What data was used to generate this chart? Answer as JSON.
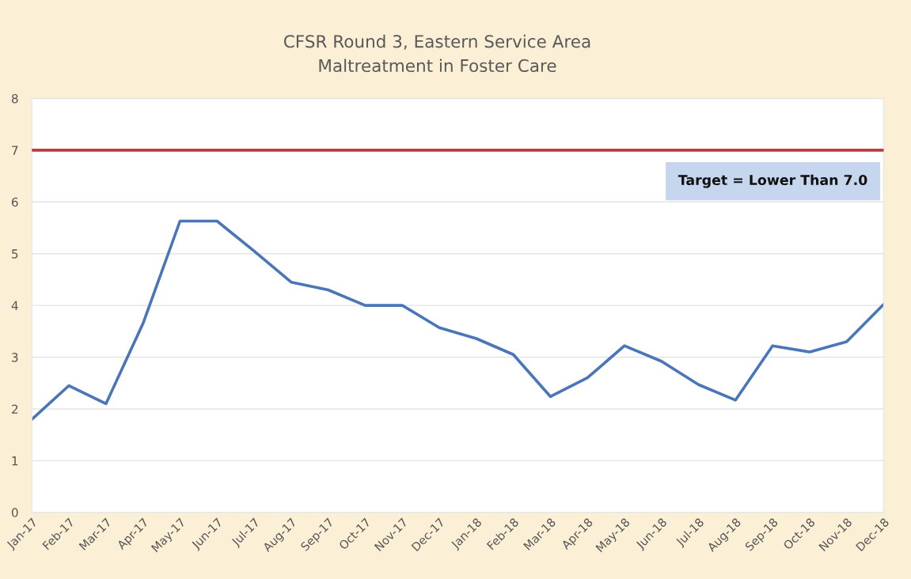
{
  "chart_data": {
    "type": "line",
    "title": "CFSR Round 3, Eastern Service Area\nMaltreatment in Foster Care",
    "categories": [
      "Jan-17",
      "Feb-17",
      "Mar-17",
      "Apr-17",
      "May-17",
      "Jun-17",
      "Jul-17",
      "Aug-17",
      "Sep-17",
      "Oct-17",
      "Nov-17",
      "Dec-17",
      "Jan-18",
      "Feb-18",
      "Mar-18",
      "Apr-18",
      "May-18",
      "Jun-18",
      "Jul-18",
      "Aug-18",
      "Sep-18",
      "Oct-18",
      "Nov-18",
      "Dec-18"
    ],
    "series": [
      {
        "color": "#4a76b8",
        "values": [
          1.8,
          2.45,
          2.1,
          3.65,
          5.63,
          5.63,
          5.05,
          4.45,
          4.3,
          4.0,
          4.0,
          3.57,
          3.36,
          3.05,
          2.24,
          2.6,
          3.22,
          2.92,
          2.47,
          2.17,
          3.22,
          3.1,
          3.3,
          4.02
        ]
      }
    ],
    "ref_lines": [
      {
        "axis": "y",
        "value": 7,
        "color": "#c0393b"
      }
    ],
    "annotations": [
      "Target = Lower Than 7.0"
    ],
    "ylim": [
      0,
      8
    ],
    "yticks": [
      0,
      1,
      2,
      3,
      4,
      5,
      6,
      7,
      8
    ],
    "grid": "y",
    "marker": "none",
    "line_style": "solid"
  }
}
